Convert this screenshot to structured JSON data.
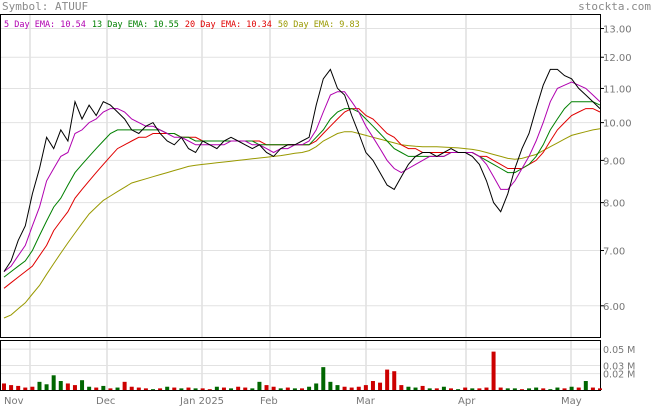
{
  "header": {
    "symbol": "Symbol: ATUUF",
    "site": "stockta.com"
  },
  "chart_data": {
    "type": "line",
    "title": "",
    "x_labels": [
      "Nov",
      "Dec",
      "Jan 2025",
      "Feb",
      "Mar",
      "Apr",
      "May"
    ],
    "price_axis": {
      "scale": "log",
      "ylim": [
        5.5,
        13.5
      ],
      "ticks": [
        "6.00",
        "7.00",
        "8.00",
        "9.00",
        "10.00",
        "11.00",
        "12.00",
        "13.00"
      ]
    },
    "volume_axis": {
      "ylim": [
        0,
        0.06
      ],
      "ticks": [
        "0.02 M",
        "0.03 M",
        "0.05 M"
      ]
    },
    "legend": [
      {
        "label": "5 Day EMA:",
        "value": "10.54",
        "color": "#b000b0"
      },
      {
        "label": "13 Day EMA:",
        "value": "10.55",
        "color": "#008000"
      },
      {
        "label": "20 Day EMA:",
        "value": "10.34",
        "color": "#e00000"
      },
      {
        "label": "50 Day EMA:",
        "value": "9.83",
        "color": "#999900"
      }
    ],
    "series": [
      {
        "name": "Price",
        "color": "#000000",
        "values": [
          6.6,
          6.8,
          7.2,
          7.5,
          8.2,
          8.8,
          9.6,
          9.3,
          9.8,
          9.5,
          10.6,
          10.1,
          10.5,
          10.2,
          10.6,
          10.5,
          10.3,
          10.1,
          9.8,
          9.7,
          9.9,
          10.0,
          9.7,
          9.5,
          9.4,
          9.6,
          9.3,
          9.2,
          9.5,
          9.4,
          9.3,
          9.5,
          9.6,
          9.5,
          9.4,
          9.3,
          9.4,
          9.2,
          9.1,
          9.3,
          9.4,
          9.4,
          9.5,
          9.6,
          10.5,
          11.3,
          11.6,
          11.0,
          10.8,
          10.2,
          9.7,
          9.2,
          9.0,
          8.7,
          8.4,
          8.3,
          8.6,
          8.9,
          9.1,
          9.2,
          9.2,
          9.1,
          9.2,
          9.3,
          9.2,
          9.2,
          9.1,
          8.9,
          8.5,
          8.0,
          7.8,
          8.2,
          8.8,
          9.3,
          9.7,
          10.4,
          11.1,
          11.6,
          11.6,
          11.4,
          11.3,
          11.0,
          10.8,
          10.6,
          10.4
        ]
      },
      {
        "name": "5 Day EMA",
        "color": "#b000b0",
        "values": [
          6.6,
          6.7,
          6.9,
          7.1,
          7.5,
          7.9,
          8.5,
          8.8,
          9.1,
          9.2,
          9.7,
          9.8,
          10.0,
          10.1,
          10.3,
          10.4,
          10.4,
          10.3,
          10.1,
          10.0,
          9.9,
          9.9,
          9.8,
          9.7,
          9.6,
          9.6,
          9.5,
          9.4,
          9.4,
          9.4,
          9.4,
          9.4,
          9.5,
          9.5,
          9.5,
          9.4,
          9.4,
          9.3,
          9.2,
          9.3,
          9.3,
          9.4,
          9.4,
          9.5,
          9.8,
          10.3,
          10.8,
          10.9,
          10.9,
          10.6,
          10.3,
          9.9,
          9.6,
          9.3,
          9.0,
          8.8,
          8.7,
          8.8,
          8.9,
          9.0,
          9.1,
          9.1,
          9.1,
          9.2,
          9.2,
          9.2,
          9.2,
          9.1,
          8.9,
          8.6,
          8.3,
          8.3,
          8.5,
          8.8,
          9.1,
          9.5,
          10.0,
          10.6,
          11.0,
          11.1,
          11.2,
          11.1,
          11.0,
          10.8,
          10.6
        ]
      },
      {
        "name": "13 Day EMA",
        "color": "#008000",
        "values": [
          6.5,
          6.6,
          6.7,
          6.8,
          7.0,
          7.3,
          7.6,
          7.9,
          8.1,
          8.4,
          8.7,
          8.9,
          9.1,
          9.3,
          9.5,
          9.7,
          9.8,
          9.8,
          9.8,
          9.8,
          9.8,
          9.8,
          9.8,
          9.7,
          9.7,
          9.6,
          9.6,
          9.5,
          9.5,
          9.5,
          9.5,
          9.5,
          9.5,
          9.5,
          9.5,
          9.5,
          9.4,
          9.4,
          9.4,
          9.4,
          9.4,
          9.4,
          9.4,
          9.4,
          9.6,
          9.8,
          10.1,
          10.3,
          10.4,
          10.4,
          10.3,
          10.1,
          9.9,
          9.7,
          9.5,
          9.3,
          9.2,
          9.1,
          9.1,
          9.1,
          9.1,
          9.1,
          9.1,
          9.2,
          9.2,
          9.2,
          9.2,
          9.1,
          9.0,
          8.9,
          8.8,
          8.7,
          8.7,
          8.8,
          8.9,
          9.1,
          9.4,
          9.8,
          10.1,
          10.4,
          10.6,
          10.6,
          10.6,
          10.6,
          10.5
        ]
      },
      {
        "name": "20 Day EMA",
        "color": "#e00000",
        "values": [
          6.3,
          6.4,
          6.5,
          6.6,
          6.7,
          6.9,
          7.1,
          7.4,
          7.6,
          7.8,
          8.1,
          8.3,
          8.5,
          8.7,
          8.9,
          9.1,
          9.3,
          9.4,
          9.5,
          9.6,
          9.6,
          9.7,
          9.7,
          9.7,
          9.7,
          9.6,
          9.6,
          9.6,
          9.5,
          9.5,
          9.5,
          9.5,
          9.5,
          9.5,
          9.5,
          9.5,
          9.5,
          9.4,
          9.4,
          9.4,
          9.4,
          9.4,
          9.4,
          9.4,
          9.5,
          9.7,
          9.9,
          10.1,
          10.3,
          10.4,
          10.4,
          10.2,
          10.1,
          9.9,
          9.7,
          9.6,
          9.4,
          9.3,
          9.3,
          9.2,
          9.2,
          9.2,
          9.2,
          9.2,
          9.2,
          9.2,
          9.2,
          9.1,
          9.1,
          9.0,
          8.9,
          8.8,
          8.8,
          8.8,
          8.9,
          9.0,
          9.2,
          9.5,
          9.8,
          10.0,
          10.2,
          10.3,
          10.4,
          10.4,
          10.3
        ]
      },
      {
        "name": "50 Day EMA",
        "color": "#999900",
        "values": [
          5.8,
          5.85,
          5.95,
          6.05,
          6.2,
          6.35,
          6.55,
          6.75,
          6.95,
          7.15,
          7.35,
          7.55,
          7.75,
          7.9,
          8.05,
          8.15,
          8.25,
          8.35,
          8.45,
          8.5,
          8.55,
          8.6,
          8.65,
          8.7,
          8.75,
          8.8,
          8.85,
          8.88,
          8.9,
          8.92,
          8.94,
          8.96,
          8.98,
          9.0,
          9.02,
          9.04,
          9.06,
          9.08,
          9.1,
          9.12,
          9.15,
          9.18,
          9.2,
          9.25,
          9.35,
          9.5,
          9.6,
          9.7,
          9.75,
          9.75,
          9.7,
          9.65,
          9.6,
          9.55,
          9.5,
          9.45,
          9.4,
          9.38,
          9.36,
          9.35,
          9.35,
          9.35,
          9.34,
          9.33,
          9.32,
          9.3,
          9.28,
          9.25,
          9.2,
          9.15,
          9.1,
          9.05,
          9.03,
          9.05,
          9.1,
          9.15,
          9.25,
          9.35,
          9.45,
          9.55,
          9.65,
          9.7,
          9.75,
          9.8,
          9.83
        ]
      }
    ],
    "volume": [
      {
        "v": 0.008,
        "c": "#cc0000"
      },
      {
        "v": 0.006,
        "c": "#cc0000"
      },
      {
        "v": 0.005,
        "c": "#cc0000"
      },
      {
        "v": 0.003,
        "c": "#cc0000"
      },
      {
        "v": 0.004,
        "c": "#cc0000"
      },
      {
        "v": 0.01,
        "c": "#006600"
      },
      {
        "v": 0.007,
        "c": "#006600"
      },
      {
        "v": 0.018,
        "c": "#006600"
      },
      {
        "v": 0.011,
        "c": "#006600"
      },
      {
        "v": 0.008,
        "c": "#cc0000"
      },
      {
        "v": 0.006,
        "c": "#cc0000"
      },
      {
        "v": 0.012,
        "c": "#006600"
      },
      {
        "v": 0.004,
        "c": "#006600"
      },
      {
        "v": 0.003,
        "c": "#cc0000"
      },
      {
        "v": 0.005,
        "c": "#006600"
      },
      {
        "v": 0.002,
        "c": "#cc0000"
      },
      {
        "v": 0.003,
        "c": "#006600"
      },
      {
        "v": 0.01,
        "c": "#cc0000"
      },
      {
        "v": 0.004,
        "c": "#cc0000"
      },
      {
        "v": 0.003,
        "c": "#cc0000"
      },
      {
        "v": 0.002,
        "c": "#cc0000"
      },
      {
        "v": 0.001,
        "c": "#006600"
      },
      {
        "v": 0.002,
        "c": "#cc0000"
      },
      {
        "v": 0.004,
        "c": "#006600"
      },
      {
        "v": 0.003,
        "c": "#cc0000"
      },
      {
        "v": 0.002,
        "c": "#006600"
      },
      {
        "v": 0.003,
        "c": "#cc0000"
      },
      {
        "v": 0.002,
        "c": "#006600"
      },
      {
        "v": 0.002,
        "c": "#cc0000"
      },
      {
        "v": 0.001,
        "c": "#cc0000"
      },
      {
        "v": 0.004,
        "c": "#006600"
      },
      {
        "v": 0.003,
        "c": "#cc0000"
      },
      {
        "v": 0.002,
        "c": "#006600"
      },
      {
        "v": 0.004,
        "c": "#cc0000"
      },
      {
        "v": 0.003,
        "c": "#cc0000"
      },
      {
        "v": 0.002,
        "c": "#006600"
      },
      {
        "v": 0.01,
        "c": "#006600"
      },
      {
        "v": 0.006,
        "c": "#cc0000"
      },
      {
        "v": 0.004,
        "c": "#cc0000"
      },
      {
        "v": 0.002,
        "c": "#006600"
      },
      {
        "v": 0.003,
        "c": "#cc0000"
      },
      {
        "v": 0.002,
        "c": "#006600"
      },
      {
        "v": 0.002,
        "c": "#cc0000"
      },
      {
        "v": 0.004,
        "c": "#006600"
      },
      {
        "v": 0.008,
        "c": "#006600"
      },
      {
        "v": 0.028,
        "c": "#006600"
      },
      {
        "v": 0.01,
        "c": "#006600"
      },
      {
        "v": 0.006,
        "c": "#006600"
      },
      {
        "v": 0.004,
        "c": "#cc0000"
      },
      {
        "v": 0.003,
        "c": "#cc0000"
      },
      {
        "v": 0.004,
        "c": "#cc0000"
      },
      {
        "v": 0.006,
        "c": "#cc0000"
      },
      {
        "v": 0.011,
        "c": "#cc0000"
      },
      {
        "v": 0.009,
        "c": "#cc0000"
      },
      {
        "v": 0.025,
        "c": "#cc0000"
      },
      {
        "v": 0.023,
        "c": "#cc0000"
      },
      {
        "v": 0.006,
        "c": "#cc0000"
      },
      {
        "v": 0.004,
        "c": "#006600"
      },
      {
        "v": 0.003,
        "c": "#006600"
      },
      {
        "v": 0.005,
        "c": "#cc0000"
      },
      {
        "v": 0.002,
        "c": "#006600"
      },
      {
        "v": 0.002,
        "c": "#cc0000"
      },
      {
        "v": 0.004,
        "c": "#006600"
      },
      {
        "v": 0.002,
        "c": "#cc0000"
      },
      {
        "v": 0.001,
        "c": "#006600"
      },
      {
        "v": 0.003,
        "c": "#cc0000"
      },
      {
        "v": 0.002,
        "c": "#006600"
      },
      {
        "v": 0.002,
        "c": "#cc0000"
      },
      {
        "v": 0.003,
        "c": "#cc0000"
      },
      {
        "v": 0.047,
        "c": "#cc0000"
      },
      {
        "v": 0.003,
        "c": "#cc0000"
      },
      {
        "v": 0.002,
        "c": "#006600"
      },
      {
        "v": 0.002,
        "c": "#006600"
      },
      {
        "v": 0.001,
        "c": "#cc0000"
      },
      {
        "v": 0.002,
        "c": "#006600"
      },
      {
        "v": 0.003,
        "c": "#006600"
      },
      {
        "v": 0.002,
        "c": "#cc0000"
      },
      {
        "v": 0.001,
        "c": "#006600"
      },
      {
        "v": 0.003,
        "c": "#006600"
      },
      {
        "v": 0.002,
        "c": "#cc0000"
      },
      {
        "v": 0.004,
        "c": "#006600"
      },
      {
        "v": 0.003,
        "c": "#cc0000"
      },
      {
        "v": 0.011,
        "c": "#006600"
      },
      {
        "v": 0.003,
        "c": "#cc0000"
      },
      {
        "v": 0.002,
        "c": "#cc0000"
      }
    ]
  }
}
